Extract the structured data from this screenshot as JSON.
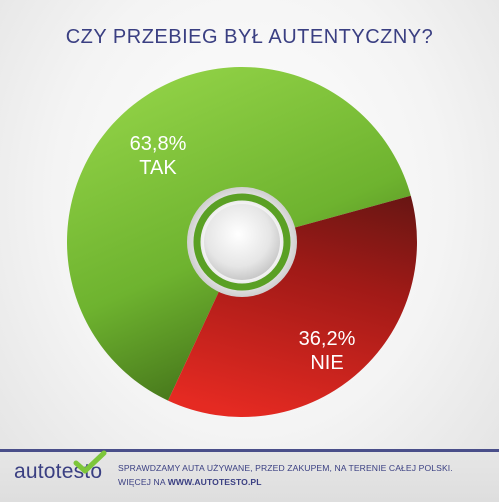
{
  "header": {
    "title": "CZY PRZEBIEG BYŁ AUTENTYCZNY?"
  },
  "footer": {
    "line1": "SPRAWDZAMY AUTA UŻYWANE, PRZED ZAKUPEM, NA TERENIE CAŁEJ POLSKI.",
    "line2_prefix": "WIĘCEJ NA ",
    "line2_link": "WWW.AUTOTESTO.PL"
  },
  "logo": {
    "text": "autotesto",
    "icon": "checkmark-icon"
  },
  "colors": {
    "title": "#3a3f82",
    "green": "#7dc63b",
    "red": "#d9241e",
    "footer_bar": "#4a4f8a"
  },
  "chart_data": {
    "type": "pie",
    "title": "CZY PRZEBIEG BYŁ AUTENTYCZNY?",
    "categories": [
      "TAK",
      "NIE"
    ],
    "values": [
      63.8,
      36.2
    ],
    "labels": [
      {
        "value": "63,8%",
        "category": "TAK"
      },
      {
        "value": "36,2%",
        "category": "NIE"
      }
    ],
    "colors": [
      "#7dc63b",
      "#d9241e"
    ],
    "style": "donut"
  }
}
